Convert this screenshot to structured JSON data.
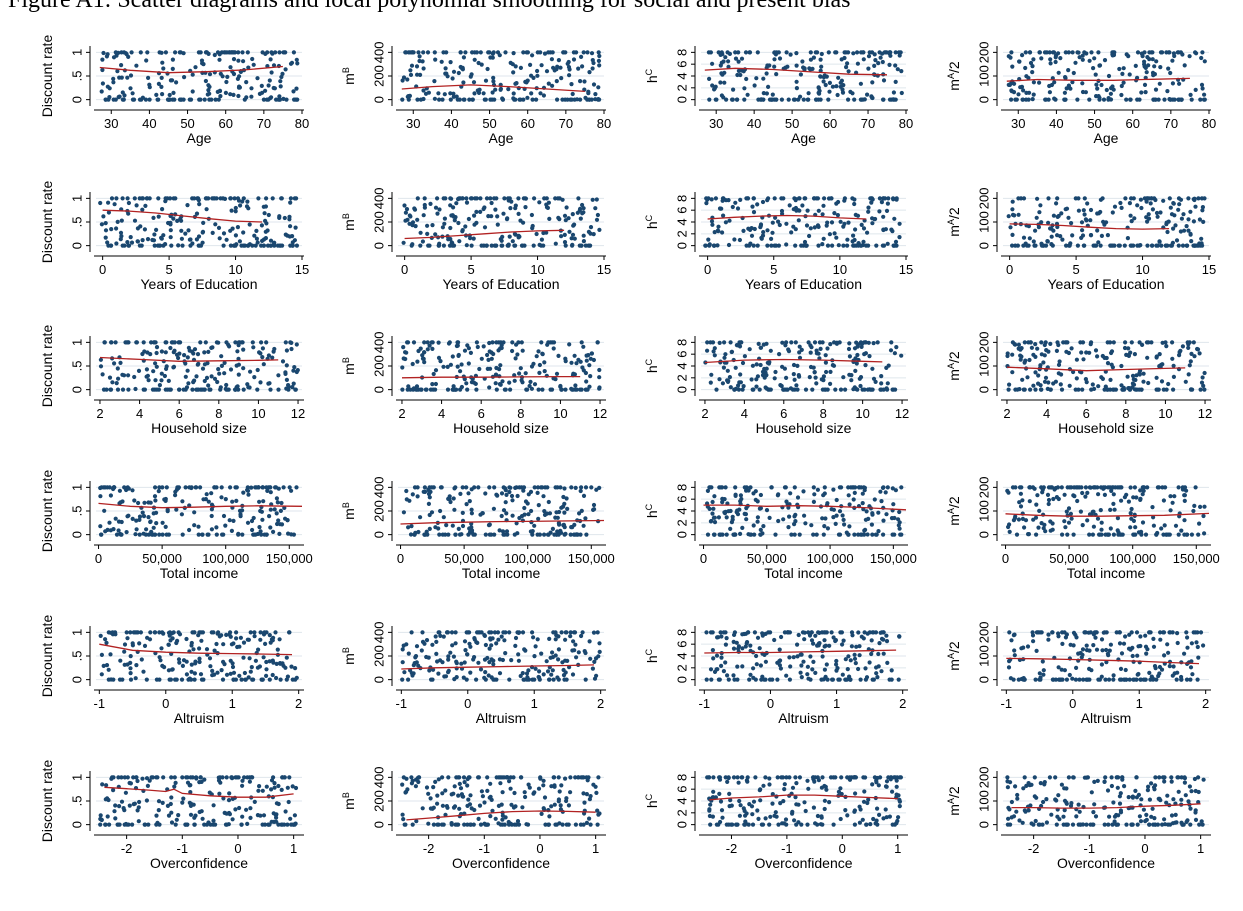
{
  "page_caption": "Figure A1: Scatter diagrams and local polynomial smoothing for social and present bias",
  "colors": {
    "points": "#1a476f",
    "smooth_line": "#b22222",
    "gridline": "#dfe6ec",
    "axis": "#000000"
  },
  "chart_data": [
    {
      "id": "discount-age",
      "type": "scatter",
      "xlabel": "Age",
      "ylabel": "Discount rate",
      "xticks": [
        "30",
        "40",
        "50",
        "60",
        "70",
        "80"
      ],
      "xtick_values": [
        30,
        40,
        50,
        60,
        70,
        80
      ],
      "xlim": [
        26,
        80
      ],
      "yticks": [
        "0",
        ".5",
        "1"
      ],
      "ytick_values": [
        0,
        0.5,
        1
      ],
      "ylim": [
        -0.05,
        1.05
      ],
      "smooth_x": [
        27,
        35,
        45,
        55,
        65,
        75
      ],
      "smooth_y": [
        0.68,
        0.62,
        0.57,
        0.59,
        0.63,
        0.7
      ]
    },
    {
      "id": "mb-age",
      "type": "scatter",
      "xlabel": "Age",
      "ylabel": "m^B",
      "xticks": [
        "30",
        "40",
        "50",
        "60",
        "70",
        "80"
      ],
      "xtick_values": [
        30,
        40,
        50,
        60,
        70,
        80
      ],
      "xlim": [
        26,
        80
      ],
      "yticks": [
        "0",
        "200",
        "400"
      ],
      "ytick_values": [
        0,
        200,
        400
      ],
      "ylim": [
        -20,
        420
      ],
      "smooth_x": [
        27,
        35,
        45,
        55,
        65,
        75
      ],
      "smooth_y": [
        90,
        110,
        125,
        110,
        90,
        70
      ]
    },
    {
      "id": "hc-age",
      "type": "scatter",
      "xlabel": "Age",
      "ylabel": "h^C",
      "xticks": [
        "30",
        "40",
        "50",
        "60",
        "70",
        "80"
      ],
      "xtick_values": [
        30,
        40,
        50,
        60,
        70,
        80
      ],
      "xlim": [
        26,
        80
      ],
      "yticks": [
        "0",
        "2",
        "4",
        "6",
        "8"
      ],
      "ytick_values": [
        0,
        2,
        4,
        6,
        8
      ],
      "ylim": [
        -0.4,
        8.4
      ],
      "smooth_x": [
        27,
        35,
        45,
        55,
        65,
        75
      ],
      "smooth_y": [
        5.0,
        5.3,
        5.1,
        4.7,
        4.3,
        4.2
      ]
    },
    {
      "id": "ma-age",
      "type": "scatter",
      "xlabel": "Age",
      "ylabel": "m^A/2",
      "xticks": [
        "30",
        "40",
        "50",
        "60",
        "70",
        "80"
      ],
      "xtick_values": [
        30,
        40,
        50,
        60,
        70,
        80
      ],
      "xlim": [
        26,
        80
      ],
      "yticks": [
        "0",
        "100",
        "200"
      ],
      "ytick_values": [
        0,
        100,
        200
      ],
      "ylim": [
        -10,
        210
      ],
      "smooth_x": [
        27,
        35,
        45,
        55,
        65,
        75
      ],
      "smooth_y": [
        78,
        85,
        82,
        82,
        86,
        90
      ]
    },
    {
      "id": "discount-edu",
      "type": "scatter",
      "xlabel": "Years of Education",
      "ylabel": "Discount rate",
      "xticks": [
        "0",
        "5",
        "10",
        "15"
      ],
      "xtick_values": [
        0,
        5,
        10,
        15
      ],
      "xlim": [
        -0.5,
        15
      ],
      "yticks": [
        "0",
        ".5",
        "1"
      ],
      "ytick_values": [
        0,
        0.5,
        1
      ],
      "ylim": [
        -0.05,
        1.05
      ],
      "smooth_x": [
        0,
        2,
        4,
        6,
        8,
        10,
        12
      ],
      "smooth_y": [
        0.75,
        0.73,
        0.69,
        0.63,
        0.57,
        0.52,
        0.5
      ]
    },
    {
      "id": "mb-edu",
      "type": "scatter",
      "xlabel": "Years of Education",
      "ylabel": "m^B",
      "xticks": [
        "0",
        "5",
        "10",
        "15"
      ],
      "xtick_values": [
        0,
        5,
        10,
        15
      ],
      "xlim": [
        -0.5,
        15
      ],
      "yticks": [
        "0",
        "200",
        "400"
      ],
      "ytick_values": [
        0,
        200,
        400
      ],
      "ylim": [
        -20,
        420
      ],
      "smooth_x": [
        0,
        2,
        4,
        6,
        8,
        10,
        12
      ],
      "smooth_y": [
        60,
        70,
        85,
        100,
        115,
        125,
        130
      ]
    },
    {
      "id": "hc-edu",
      "type": "scatter",
      "xlabel": "Years of Education",
      "ylabel": "h^C",
      "xticks": [
        "0",
        "5",
        "10",
        "15"
      ],
      "xtick_values": [
        0,
        5,
        10,
        15
      ],
      "xlim": [
        -0.5,
        15
      ],
      "yticks": [
        "0",
        "2",
        "4",
        "6",
        "8"
      ],
      "ytick_values": [
        0,
        2,
        4,
        6,
        8
      ],
      "ylim": [
        -0.4,
        8.4
      ],
      "smooth_x": [
        0,
        2,
        4,
        6,
        8,
        10,
        12
      ],
      "smooth_y": [
        4.5,
        4.8,
        5.0,
        5.1,
        5.0,
        4.7,
        4.5
      ]
    },
    {
      "id": "ma-edu",
      "type": "scatter",
      "xlabel": "Years of Education",
      "ylabel": "m^A/2",
      "xticks": [
        "0",
        "5",
        "10",
        "15"
      ],
      "xtick_values": [
        0,
        5,
        10,
        15
      ],
      "xlim": [
        -0.5,
        15
      ],
      "yticks": [
        "0",
        "100",
        "200"
      ],
      "ytick_values": [
        0,
        100,
        200
      ],
      "ylim": [
        -10,
        210
      ],
      "smooth_x": [
        0,
        2,
        4,
        6,
        8,
        10,
        12
      ],
      "smooth_y": [
        92,
        90,
        85,
        78,
        72,
        70,
        72
      ]
    },
    {
      "id": "discount-hh",
      "type": "scatter",
      "xlabel": "Household size",
      "ylabel": "Discount rate",
      "xticks": [
        "2",
        "4",
        "6",
        "8",
        "10",
        "12"
      ],
      "xtick_values": [
        2,
        4,
        6,
        8,
        10,
        12
      ],
      "xlim": [
        1.8,
        12.2
      ],
      "yticks": [
        "0",
        ".5",
        "1"
      ],
      "ytick_values": [
        0,
        0.5,
        1
      ],
      "ylim": [
        -0.05,
        1.05
      ],
      "smooth_x": [
        2,
        4,
        6,
        8,
        10,
        11
      ],
      "smooth_y": [
        0.68,
        0.64,
        0.6,
        0.61,
        0.62,
        0.63
      ]
    },
    {
      "id": "mb-hh",
      "type": "scatter",
      "xlabel": "Household size",
      "ylabel": "m^B",
      "xticks": [
        "2",
        "4",
        "6",
        "8",
        "10",
        "12"
      ],
      "xtick_values": [
        2,
        4,
        6,
        8,
        10,
        12
      ],
      "xlim": [
        1.8,
        12.2
      ],
      "yticks": [
        "0",
        "200",
        "400"
      ],
      "ytick_values": [
        0,
        200,
        400
      ],
      "ylim": [
        -20,
        420
      ],
      "smooth_x": [
        2,
        4,
        6,
        8,
        10,
        11
      ],
      "smooth_y": [
        100,
        105,
        105,
        108,
        110,
        110
      ]
    },
    {
      "id": "hc-hh",
      "type": "scatter",
      "xlabel": "Household size",
      "ylabel": "h^C",
      "xticks": [
        "2",
        "4",
        "6",
        "8",
        "10",
        "12"
      ],
      "xtick_values": [
        2,
        4,
        6,
        8,
        10,
        12
      ],
      "xlim": [
        1.8,
        12.2
      ],
      "yticks": [
        "0",
        "2",
        "4",
        "6",
        "8"
      ],
      "ytick_values": [
        0,
        2,
        4,
        6,
        8
      ],
      "ylim": [
        -0.4,
        8.4
      ],
      "smooth_x": [
        2,
        4,
        6,
        8,
        10,
        11
      ],
      "smooth_y": [
        4.6,
        5.0,
        5.1,
        5.0,
        4.8,
        4.7
      ]
    },
    {
      "id": "ma-hh",
      "type": "scatter",
      "xlabel": "Household size",
      "ylabel": "m^A/2",
      "xticks": [
        "2",
        "4",
        "6",
        "8",
        "10",
        "12"
      ],
      "xtick_values": [
        2,
        4,
        6,
        8,
        10,
        12
      ],
      "xlim": [
        1.8,
        12.2
      ],
      "yticks": [
        "0",
        "100",
        "200"
      ],
      "ytick_values": [
        0,
        100,
        200
      ],
      "ylim": [
        -10,
        210
      ],
      "smooth_x": [
        2,
        4,
        6,
        8,
        10,
        11
      ],
      "smooth_y": [
        95,
        88,
        80,
        85,
        90,
        92
      ]
    },
    {
      "id": "discount-income",
      "type": "scatter",
      "xlabel": "Total income",
      "ylabel": "Discount rate",
      "xticks": [
        "0",
        "50,000",
        "100,000",
        "150,000"
      ],
      "xtick_values": [
        0,
        50000,
        100000,
        150000
      ],
      "xlim": [
        -2000,
        160000
      ],
      "yticks": [
        "0",
        ".5",
        "1"
      ],
      "ytick_values": [
        0,
        0.5,
        1
      ],
      "ylim": [
        -0.05,
        1.05
      ],
      "smooth_x": [
        0,
        25000,
        50000,
        75000,
        100000,
        125000,
        160000
      ],
      "smooth_y": [
        0.66,
        0.6,
        0.57,
        0.58,
        0.6,
        0.61,
        0.6
      ]
    },
    {
      "id": "mb-income",
      "type": "scatter",
      "xlabel": "Total income",
      "ylabel": "m^B",
      "xticks": [
        "0",
        "50,000",
        "100,000",
        "150,000"
      ],
      "xtick_values": [
        0,
        50000,
        100000,
        150000
      ],
      "xlim": [
        -2000,
        160000
      ],
      "yticks": [
        "0",
        "200",
        "400"
      ],
      "ytick_values": [
        0,
        200,
        400
      ],
      "ylim": [
        -20,
        420
      ],
      "smooth_x": [
        0,
        25000,
        50000,
        75000,
        100000,
        125000,
        160000
      ],
      "smooth_y": [
        90,
        100,
        105,
        110,
        112,
        115,
        120
      ]
    },
    {
      "id": "hc-income",
      "type": "scatter",
      "xlabel": "Total income",
      "ylabel": "h^C",
      "xticks": [
        "0",
        "50,000",
        "100,000",
        "150,000"
      ],
      "xtick_values": [
        0,
        50000,
        100000,
        150000
      ],
      "xlim": [
        -2000,
        160000
      ],
      "yticks": [
        "0",
        "2",
        "4",
        "6",
        "8"
      ],
      "ytick_values": [
        0,
        2,
        4,
        6,
        8
      ],
      "ylim": [
        -0.4,
        8.4
      ],
      "smooth_x": [
        0,
        25000,
        50000,
        75000,
        100000,
        125000,
        160000
      ],
      "smooth_y": [
        5.0,
        5.0,
        4.8,
        4.9,
        4.8,
        4.6,
        4.2
      ]
    },
    {
      "id": "ma-income",
      "type": "scatter",
      "xlabel": "Total income",
      "ylabel": "m^A/2",
      "xticks": [
        "0",
        "50,000",
        "100,000",
        "150,000"
      ],
      "xtick_values": [
        0,
        50000,
        100000,
        150000
      ],
      "xlim": [
        -2000,
        160000
      ],
      "yticks": [
        "0",
        "100",
        "200"
      ],
      "ytick_values": [
        0,
        100,
        200
      ],
      "ylim": [
        -10,
        210
      ],
      "smooth_x": [
        0,
        25000,
        50000,
        75000,
        100000,
        125000,
        160000
      ],
      "smooth_y": [
        88,
        82,
        78,
        78,
        80,
        82,
        90
      ]
    },
    {
      "id": "discount-altruism",
      "type": "scatter",
      "xlabel": "Altruism",
      "ylabel": "Discount rate",
      "xticks": [
        "-1",
        "0",
        "1",
        "2"
      ],
      "xtick_values": [
        -1,
        0,
        1,
        2
      ],
      "xlim": [
        -1.05,
        2.05
      ],
      "yticks": [
        "0",
        ".5",
        "1"
      ],
      "ytick_values": [
        0,
        0.5,
        1
      ],
      "ylim": [
        -0.05,
        1.05
      ],
      "smooth_x": [
        -1,
        -0.5,
        0,
        0.5,
        1,
        1.5,
        1.9
      ],
      "smooth_y": [
        0.75,
        0.62,
        0.58,
        0.56,
        0.55,
        0.54,
        0.53
      ]
    },
    {
      "id": "mb-altruism",
      "type": "scatter",
      "xlabel": "Altruism",
      "ylabel": "m^B",
      "xticks": [
        "-1",
        "0",
        "1",
        "2"
      ],
      "xtick_values": [
        -1,
        0,
        1,
        2
      ],
      "xlim": [
        -1.05,
        2.05
      ],
      "yticks": [
        "0",
        "200",
        "400"
      ],
      "ytick_values": [
        0,
        200,
        400
      ],
      "ylim": [
        -20,
        420
      ],
      "smooth_x": [
        -1,
        -0.5,
        0,
        0.5,
        1,
        1.5,
        1.9
      ],
      "smooth_y": [
        90,
        100,
        105,
        110,
        115,
        120,
        125
      ]
    },
    {
      "id": "hc-altruism",
      "type": "scatter",
      "xlabel": "Altruism",
      "ylabel": "h^C",
      "xticks": [
        "-1",
        "0",
        "1",
        "2"
      ],
      "xtick_values": [
        -1,
        0,
        1,
        2
      ],
      "xlim": [
        -1.05,
        2.05
      ],
      "yticks": [
        "0",
        "2",
        "4",
        "6",
        "8"
      ],
      "ytick_values": [
        0,
        2,
        4,
        6,
        8
      ],
      "ylim": [
        -0.4,
        8.4
      ],
      "smooth_x": [
        -1,
        -0.5,
        0,
        0.5,
        1,
        1.5,
        1.9
      ],
      "smooth_y": [
        4.5,
        4.6,
        4.6,
        4.7,
        4.8,
        4.9,
        5.0
      ]
    },
    {
      "id": "ma-altruism",
      "type": "scatter",
      "xlabel": "Altruism",
      "ylabel": "m^A/2",
      "xticks": [
        "-1",
        "0",
        "1",
        "2"
      ],
      "xtick_values": [
        -1,
        0,
        1,
        2
      ],
      "xlim": [
        -1.05,
        2.05
      ],
      "yticks": [
        "0",
        "100",
        "200"
      ],
      "ytick_values": [
        0,
        100,
        200
      ],
      "ylim": [
        -10,
        210
      ],
      "smooth_x": [
        -1,
        -0.5,
        0,
        0.5,
        1,
        1.5,
        1.9
      ],
      "smooth_y": [
        90,
        88,
        85,
        82,
        78,
        72,
        68
      ]
    },
    {
      "id": "discount-overconf",
      "type": "scatter",
      "xlabel": "Overconfidence",
      "ylabel": "Discount rate",
      "xticks": [
        "-2",
        "-1",
        "0",
        "1"
      ],
      "xtick_values": [
        -2,
        -1,
        0,
        1
      ],
      "xlim": [
        -2.55,
        1.15
      ],
      "yticks": [
        "0",
        ".5",
        "1"
      ],
      "ytick_values": [
        0,
        0.5,
        1
      ],
      "ylim": [
        -0.05,
        1.05
      ],
      "smooth_x": [
        -2.4,
        -2.0,
        -1.6,
        -1.3,
        -1.15,
        -1.0,
        -0.5,
        0,
        0.5,
        1.0
      ],
      "smooth_y": [
        0.79,
        0.76,
        0.73,
        0.7,
        0.75,
        0.66,
        0.61,
        0.58,
        0.58,
        0.65
      ]
    },
    {
      "id": "mb-overconf",
      "type": "scatter",
      "xlabel": "Overconfidence",
      "ylabel": "m^B",
      "xticks": [
        "-2",
        "-1",
        "0",
        "1"
      ],
      "xtick_values": [
        -2,
        -1,
        0,
        1
      ],
      "xlim": [
        -2.55,
        1.15
      ],
      "yticks": [
        "0",
        "200",
        "400"
      ],
      "ytick_values": [
        0,
        200,
        400
      ],
      "ylim": [
        -20,
        420
      ],
      "smooth_x": [
        -2.4,
        -2.0,
        -1.5,
        -1.0,
        -0.5,
        0,
        0.5,
        1.0
      ],
      "smooth_y": [
        40,
        55,
        75,
        95,
        110,
        115,
        112,
        105
      ]
    },
    {
      "id": "hc-overconf",
      "type": "scatter",
      "xlabel": "Overconfidence",
      "ylabel": "h^C",
      "xticks": [
        "-2",
        "-1",
        "0",
        "1"
      ],
      "xtick_values": [
        -2,
        -1,
        0,
        1
      ],
      "xlim": [
        -2.55,
        1.15
      ],
      "yticks": [
        "0",
        "2",
        "4",
        "6",
        "8"
      ],
      "ytick_values": [
        0,
        2,
        4,
        6,
        8
      ],
      "ylim": [
        -0.4,
        8.4
      ],
      "smooth_x": [
        -2.4,
        -2.0,
        -1.5,
        -1.0,
        -0.5,
        0,
        0.5,
        1.0
      ],
      "smooth_y": [
        4.2,
        4.5,
        4.7,
        5.0,
        5.0,
        4.8,
        4.6,
        4.4
      ]
    },
    {
      "id": "ma-overconf",
      "type": "scatter",
      "xlabel": "Overconfidence",
      "ylabel": "m^A/2",
      "xticks": [
        "-2",
        "-1",
        "0",
        "1"
      ],
      "xtick_values": [
        -2,
        -1,
        0,
        1
      ],
      "xlim": [
        -2.55,
        1.15
      ],
      "yticks": [
        "0",
        "100",
        "200"
      ],
      "ytick_values": [
        0,
        100,
        200
      ],
      "ylim": [
        -10,
        210
      ],
      "smooth_x": [
        -2.4,
        -2.0,
        -1.5,
        -1.0,
        -0.5,
        0,
        0.5,
        1.0
      ],
      "smooth_y": [
        72,
        72,
        70,
        70,
        72,
        78,
        82,
        88
      ]
    }
  ]
}
